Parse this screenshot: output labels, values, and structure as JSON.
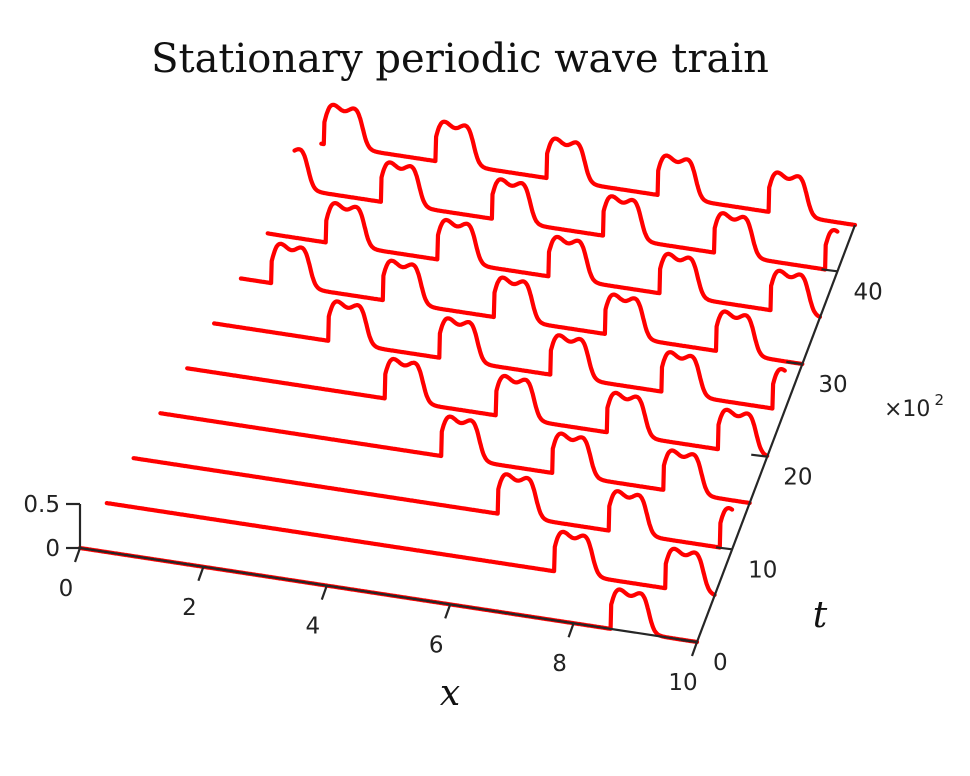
{
  "chart_data": {
    "type": "line",
    "title": "Stationary periodic wave train",
    "xlabel": "x",
    "ylabel": "t",
    "zlabel": "",
    "xlim": [
      0,
      10
    ],
    "ylim": [
      0,
      4500
    ],
    "zlim": [
      0,
      0.5
    ],
    "x_ticks": [
      "0",
      "2",
      "4",
      "6",
      "8",
      "10"
    ],
    "y_ticks": [
      "0",
      "10",
      "20",
      "30",
      "40"
    ],
    "y_tick_values": [
      0,
      1000,
      2000,
      3000,
      4000
    ],
    "y_multiplier": {
      "base": "×10",
      "exponent": "2"
    },
    "z_ticks": [
      "0.5",
      "0"
    ],
    "z_tick_values": [
      0.5,
      0
    ],
    "series_color": "#ff0000",
    "pulse_amplitude": 0.5,
    "wavelength": 1.8,
    "traces": [
      {
        "t": 0,
        "front": 8.6
      },
      {
        "t": 500,
        "front": 7.4
      },
      {
        "t": 1000,
        "front": 6.2
      },
      {
        "t": 1500,
        "front": 5.0
      },
      {
        "t": 2000,
        "front": 3.8
      },
      {
        "t": 2500,
        "front": 2.6
      },
      {
        "t": 3000,
        "front": 1.4
      },
      {
        "t": 3500,
        "front": 0.2
      },
      {
        "t": 4000,
        "front": -1.0
      },
      {
        "t": 4500,
        "front": -2.2
      }
    ]
  }
}
